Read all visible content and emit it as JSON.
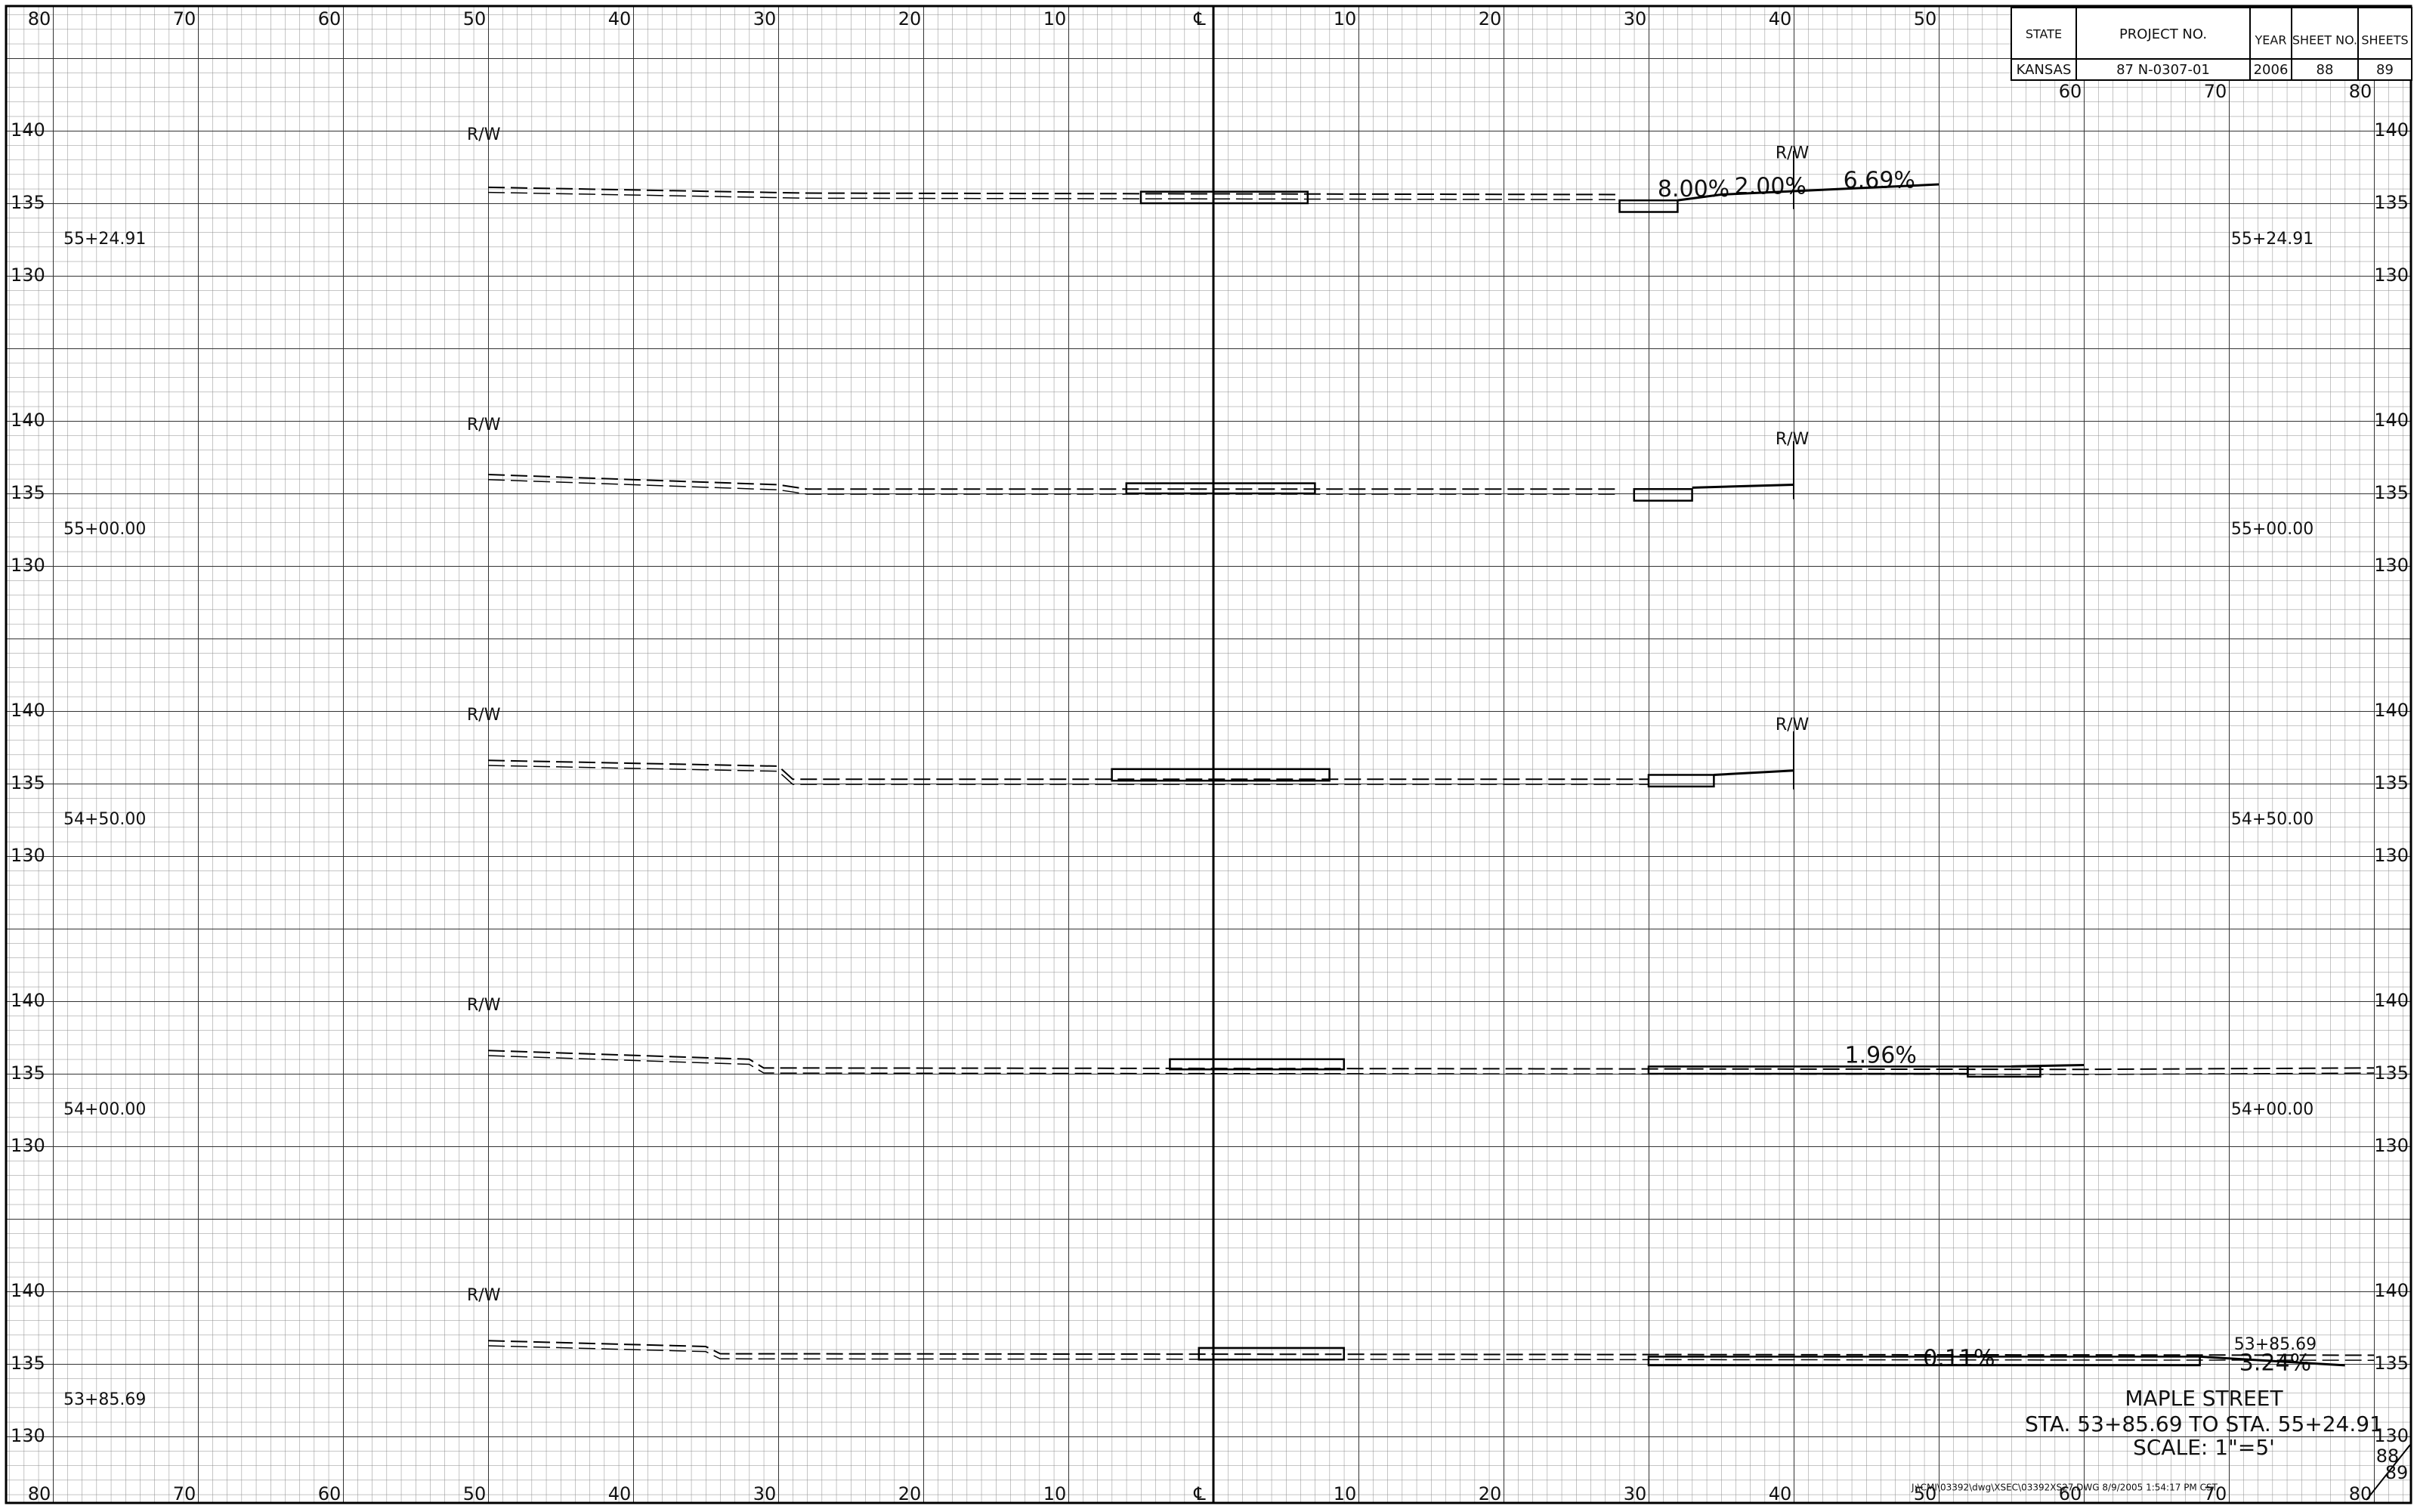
{
  "top_axis_labels": [
    "80",
    "70",
    "60",
    "50",
    "40",
    "30",
    "20",
    "10",
    "℄",
    "10",
    "20",
    "30",
    "40",
    "50"
  ],
  "top_right_axis_labels": [
    "60",
    "70",
    "80"
  ],
  "bottom_axis_labels": [
    "80",
    "70",
    "60",
    "50",
    "40",
    "30",
    "20",
    "10",
    "℄",
    "10",
    "20",
    "30",
    "40",
    "50",
    "60",
    "70",
    "80"
  ],
  "title_block": {
    "headers": [
      "STATE",
      "PROJECT NO.",
      "YEAR",
      "SHEET NO.",
      "SHEETS"
    ],
    "values": [
      "KANSAS",
      "87 N-0307-01",
      "2006",
      "88",
      "89"
    ]
  },
  "sections": [
    {
      "station": "55+24.91",
      "elevation_labels": [
        "140",
        "135",
        "130"
      ],
      "rw_labels": [
        "R/W",
        "R/W"
      ],
      "annotations": [
        "8.00%",
        "2.00%",
        "6.69%"
      ]
    },
    {
      "station": "55+00.00",
      "elevation_labels": [
        "140",
        "135",
        "130"
      ],
      "rw_labels": [
        "R/W",
        "R/W"
      ],
      "annotations": []
    },
    {
      "station": "54+50.00",
      "elevation_labels": [
        "140",
        "135",
        "130"
      ],
      "rw_labels": [
        "R/W",
        "R/W"
      ],
      "annotations": []
    },
    {
      "station": "54+00.00",
      "elevation_labels": [
        "140",
        "135",
        "130"
      ],
      "rw_labels": [
        "R/W"
      ],
      "annotations": [
        "1.96%"
      ]
    },
    {
      "station": "53+85.69",
      "elevation_labels": [
        "140",
        "135",
        "130"
      ],
      "rw_labels": [
        "R/W"
      ],
      "annotations": [
        "0.11%",
        "3.24%"
      ]
    }
  ],
  "title": {
    "name": "MAPLE STREET",
    "range": "STA. 53+85.69 TO STA. 55+24.91",
    "scale": "SCALE: 1\"=5'"
  },
  "file_info": "J:\\CMI\\03392\\dwg\\XSEC\\03392XS27.DWG  8/9/2005  1:54:17 PM CST",
  "sheet": {
    "number": "88",
    "total": "89"
  }
}
